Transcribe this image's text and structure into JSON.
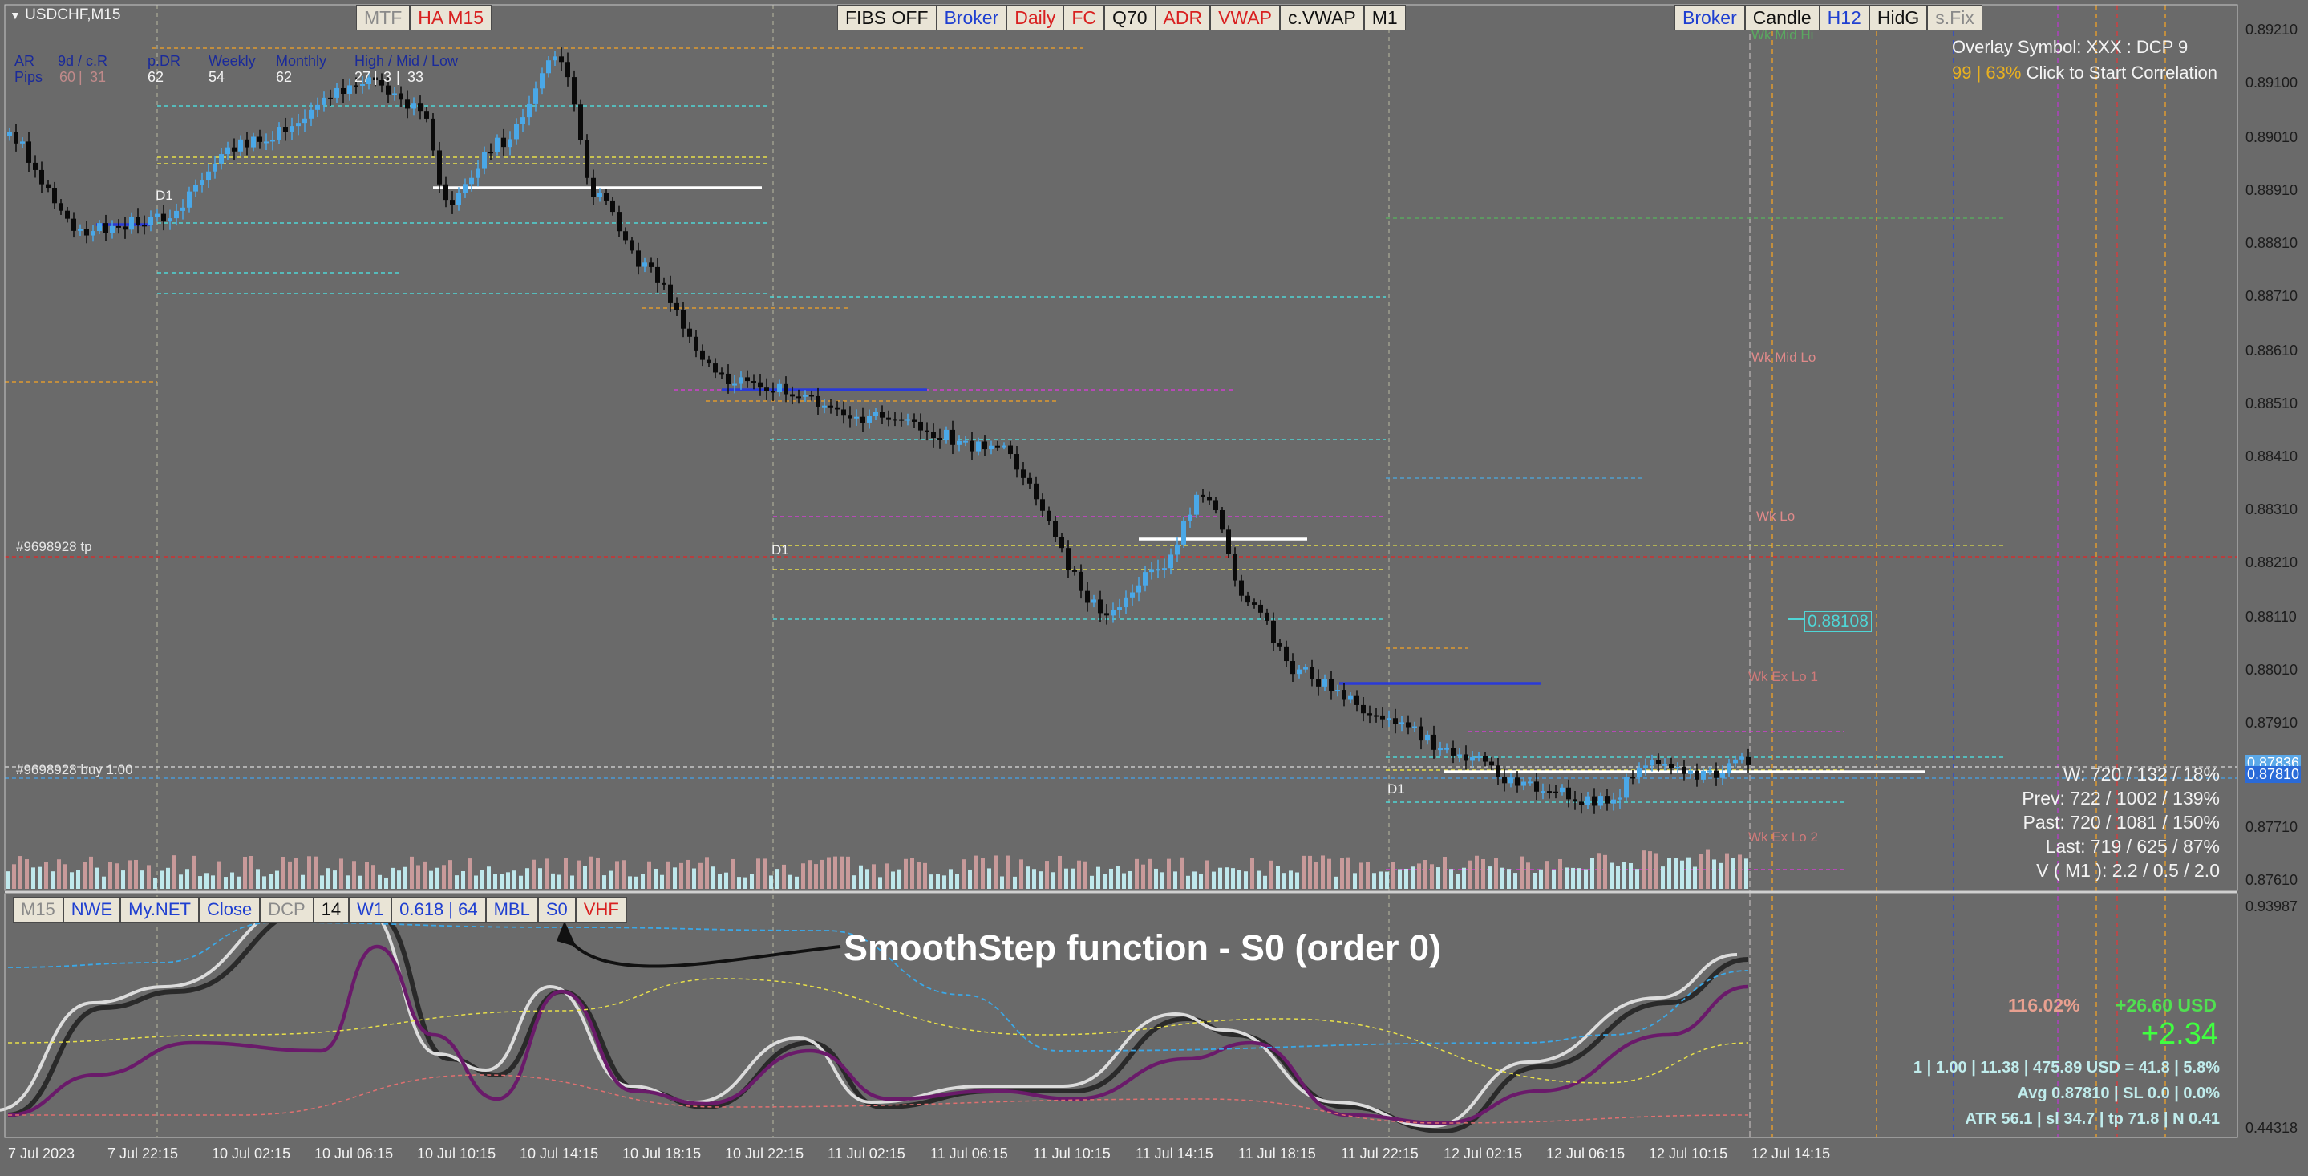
{
  "symbol": "USDCHF,M15",
  "top_left_buttons": [
    {
      "label": "MTF",
      "color": "grey"
    },
    {
      "label": "HA M15",
      "color": "red"
    }
  ],
  "top_mid_buttons": [
    {
      "label": "FIBS OFF",
      "color": "blk"
    },
    {
      "label": "Broker",
      "color": "blue"
    },
    {
      "label": "Daily",
      "color": "red"
    },
    {
      "label": "FC",
      "color": "red"
    },
    {
      "label": "Q70",
      "color": "blk"
    },
    {
      "label": "ADR",
      "color": "red"
    },
    {
      "label": "VWAP",
      "color": "red"
    },
    {
      "label": "c.VWAP",
      "color": "blk"
    },
    {
      "label": "M1",
      "color": "blk"
    }
  ],
  "top_right_buttons": [
    {
      "label": "Broker",
      "color": "blue"
    },
    {
      "label": "Candle",
      "color": "blk"
    },
    {
      "label": "H12",
      "color": "blue"
    },
    {
      "label": "HidG",
      "color": "blk"
    },
    {
      "label": "s.Fix",
      "color": "grey"
    }
  ],
  "range_table": {
    "row1": [
      "AR",
      "9d / c.R",
      "p.DR",
      "Weekly",
      "Monthly",
      "High / Mid / Low"
    ],
    "row2": [
      "Pips",
      "60",
      "31",
      "62",
      "54",
      "62",
      "27",
      "3",
      "33"
    ]
  },
  "overlay": {
    "line1": "Overlay Symbol: XXX : DCP 9",
    "line2_pct": "99 | 63%",
    "line2_text": " Click to Start Correlation"
  },
  "level_labels": {
    "wk_mid_hi": "Wk Mid Hi",
    "wk_mid_lo": "Wk Mid Lo",
    "wk_lo": "Wk Lo",
    "wk_ex_lo_1": "Wk Ex Lo 1",
    "wk_ex_lo_2": "Wk Ex Lo 2",
    "price_box": "0.88108",
    "tp_label": "#9698928 tp",
    "buy_label": "#9698928 buy 1.00",
    "d1": "D1"
  },
  "stats": [
    "W: 720 / 132 / 18%",
    "Prev: 722 / 1002 / 139%",
    "Past: 720 / 1081 / 150%",
    "Last: 719 / 625 / 87%",
    "V ( M1 ): 2.2 / 0.5 / 2.0"
  ],
  "price_axis": [
    "0.89210",
    "0.89100",
    "0.89010",
    "0.88910",
    "0.88810",
    "0.88710",
    "0.88610",
    "0.88510",
    "0.88410",
    "0.88310",
    "0.88210",
    "0.88110",
    "0.88010",
    "0.87910",
    "0.87836",
    "0.87810",
    "0.87710",
    "0.87610"
  ],
  "indicator_axis": {
    "top": "0.93987",
    "bottom": "0.44318"
  },
  "indicator_buttons": [
    {
      "label": "M15",
      "color": "grey"
    },
    {
      "label": "NWE",
      "color": "blue"
    },
    {
      "label": "My.NET",
      "color": "blue"
    },
    {
      "label": "Close",
      "color": "blue"
    },
    {
      "label": "DCP",
      "color": "grey"
    },
    {
      "label": "14",
      "color": "blk"
    },
    {
      "label": "W1",
      "color": "blue"
    },
    {
      "label": "0.618 | 64",
      "color": "blue"
    },
    {
      "label": "MBL",
      "color": "blue"
    },
    {
      "label": "S0",
      "color": "blue"
    },
    {
      "label": "VHF",
      "color": "red"
    }
  ],
  "annotation": "SmoothStep function - S0 (order 0)",
  "bottom_stats": {
    "pct": "116.02%",
    "usd": "+26.60 USD",
    "big": "+2.34",
    "line1": "1  |  1.00  |  11.38  |  475.89 USD = 41.8  |  5.8%",
    "line2": "Avg 0.87810  |  SL 0.0  |  0.0%",
    "line3": "ATR 56.1  | sl 34.7  |  tp 71.8  |  N 0.41"
  },
  "time_axis": [
    "7 Jul 2023",
    "7 Jul 22:15",
    "10 Jul 02:15",
    "10 Jul 06:15",
    "10 Jul 10:15",
    "10 Jul 14:15",
    "10 Jul 18:15",
    "10 Jul 22:15",
    "11 Jul 02:15",
    "11 Jul 06:15",
    "11 Jul 10:15",
    "11 Jul 14:15",
    "11 Jul 18:15",
    "11 Jul 22:15",
    "12 Jul 02:15",
    "12 Jul 06:15",
    "12 Jul 10:15",
    "12 Jul 14:15"
  ],
  "colors": {
    "background": "#6a6a6a",
    "bull": "#4aa8e8",
    "bear": "#0a0a0a",
    "accent_red": "#d82020",
    "accent_blue": "#1f3fd0",
    "cyan": "#4fd6d6",
    "magenta": "#d040d0",
    "orange": "#e09a30",
    "yellow": "#e8e04a",
    "osc_purple": "#6a1a6a"
  }
}
